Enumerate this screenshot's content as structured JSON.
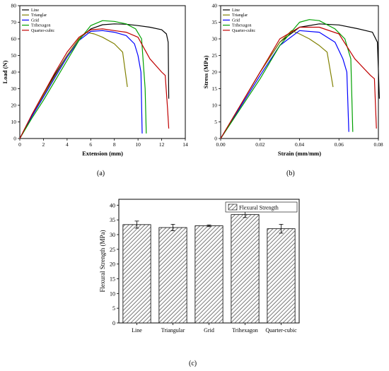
{
  "panels": {
    "a": "(a)",
    "b": "(b)",
    "c": "(c)"
  },
  "chart_data": [
    {
      "type": "line",
      "xlabel": "Extension (mm)",
      "ylabel": "Load (N)",
      "xlim": [
        0,
        14
      ],
      "ylim": [
        0,
        80
      ],
      "xticks": [
        0,
        2,
        4,
        6,
        8,
        10,
        12,
        14
      ],
      "yticks": [
        0,
        10,
        20,
        30,
        40,
        50,
        60,
        70,
        80
      ],
      "legend": "top-left",
      "series": [
        {
          "name": "Line",
          "color": "#000000",
          "x": [
            0,
            1,
            2,
            3,
            4,
            5,
            6,
            7,
            8,
            9,
            10,
            11,
            12,
            12.4,
            12.55,
            12.6
          ],
          "y": [
            0,
            14,
            27,
            39,
            50,
            60,
            66,
            68.5,
            69,
            68.8,
            68,
            67,
            65.5,
            63,
            58,
            24
          ]
        },
        {
          "name": "Trianglar",
          "color": "#808000",
          "x": [
            0,
            1,
            2,
            3,
            4,
            5,
            5.6,
            6.3,
            7,
            8,
            8.7,
            9.1
          ],
          "y": [
            0,
            13,
            26,
            38,
            50,
            60,
            64,
            63,
            61,
            57,
            52,
            31
          ]
        },
        {
          "name": "Grid",
          "color": "#0000ff",
          "x": [
            0,
            1,
            2,
            3,
            4,
            5,
            6,
            7,
            8,
            9,
            9.7,
            10,
            10.25,
            10.35
          ],
          "y": [
            0,
            13,
            25,
            37,
            49,
            59,
            64.5,
            65,
            64,
            62,
            57,
            50,
            40,
            3
          ]
        },
        {
          "name": "Trihexagon",
          "color": "#00a000",
          "x": [
            0,
            1,
            2,
            3,
            4,
            5,
            6,
            7,
            8,
            9,
            9.8,
            10.3,
            10.6,
            10.7
          ],
          "y": [
            0,
            12,
            23,
            35,
            47,
            59,
            68,
            71,
            70.5,
            69,
            66,
            60,
            30,
            3
          ]
        },
        {
          "name": "Quarter-cubic",
          "color": "#c00000",
          "x": [
            0,
            1,
            2,
            3,
            4,
            5,
            6,
            7,
            8,
            9,
            10,
            11,
            12,
            12.3,
            12.5,
            12.6
          ],
          "y": [
            0,
            14,
            27,
            40,
            52,
            61,
            65.5,
            66,
            65,
            64,
            61,
            48,
            40,
            38,
            18,
            6
          ]
        }
      ]
    },
    {
      "type": "line",
      "xlabel": "Strain (mm/mm)",
      "ylabel": "Stress (MPa)",
      "xlim": [
        0,
        0.08
      ],
      "ylim": [
        0,
        40
      ],
      "xticks": [
        0.0,
        0.02,
        0.04,
        0.06,
        0.08
      ],
      "xtick_labels": [
        "0.00",
        "0.02",
        "0.04",
        "0.06",
        "0.08"
      ],
      "yticks": [
        0,
        5,
        10,
        15,
        20,
        25,
        30,
        35,
        40
      ],
      "legend": "top-left",
      "series": [
        {
          "name": "Line",
          "color": "#000000",
          "x": [
            0,
            0.01,
            0.02,
            0.03,
            0.04,
            0.05,
            0.06,
            0.07,
            0.077,
            0.0795,
            0.0805
          ],
          "y": [
            0,
            10,
            20,
            29,
            33.5,
            34.5,
            34.2,
            33,
            32,
            29,
            12
          ]
        },
        {
          "name": "Trianglar",
          "color": "#808000",
          "x": [
            0,
            0.01,
            0.02,
            0.03,
            0.036,
            0.04,
            0.045,
            0.05,
            0.054,
            0.057
          ],
          "y": [
            0,
            10,
            20,
            29,
            32.5,
            31.5,
            30,
            28,
            26,
            15.5
          ]
        },
        {
          "name": "Grid",
          "color": "#0000ff",
          "x": [
            0,
            0.01,
            0.02,
            0.03,
            0.04,
            0.05,
            0.058,
            0.062,
            0.064,
            0.065
          ],
          "y": [
            0,
            9.5,
            19,
            28,
            32.5,
            32,
            29,
            24,
            20,
            2
          ]
        },
        {
          "name": "Trihexagon",
          "color": "#00a000",
          "x": [
            0,
            0.01,
            0.02,
            0.03,
            0.04,
            0.045,
            0.05,
            0.058,
            0.063,
            0.066,
            0.067
          ],
          "y": [
            0,
            9,
            18,
            28,
            35,
            35.8,
            35.5,
            33,
            30,
            24,
            2
          ]
        },
        {
          "name": "Quarter-cubic",
          "color": "#c00000",
          "x": [
            0,
            0.01,
            0.02,
            0.03,
            0.04,
            0.05,
            0.06,
            0.068,
            0.076,
            0.078,
            0.079
          ],
          "y": [
            0,
            10,
            20,
            30,
            33.5,
            33.5,
            31.5,
            24,
            19,
            18,
            3
          ]
        }
      ]
    },
    {
      "type": "bar",
      "ylabel": "Flexural Strength (MPa)",
      "ylim": [
        0,
        42
      ],
      "yticks": [
        0,
        5,
        10,
        15,
        20,
        25,
        30,
        35,
        40
      ],
      "legend": "top-right",
      "categories": [
        "Line",
        "Triangular",
        "Grid",
        "Trihexagon",
        "Quarter-cubic"
      ],
      "series": [
        {
          "name": "Flexural Strength",
          "values": [
            33.4,
            32.4,
            33.0,
            36.8,
            32.0
          ],
          "errors": [
            1.2,
            1.1,
            0.3,
            1.0,
            1.5
          ]
        }
      ]
    }
  ]
}
